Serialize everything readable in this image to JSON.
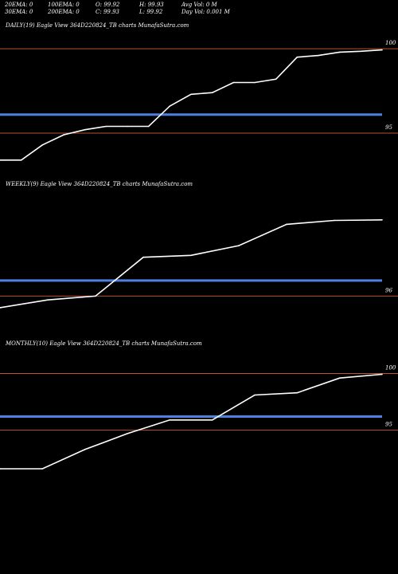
{
  "header": {
    "row1": [
      {
        "text": "20EMA: 0"
      },
      {
        "text": "100EMA: 0"
      },
      {
        "text": "O: 99.92"
      },
      {
        "text": "H: 99.93"
      },
      {
        "text": "Avg Vol: 0  M"
      }
    ],
    "row2": [
      {
        "text": "30EMA: 0"
      },
      {
        "text": "200EMA: 0"
      },
      {
        "text": "C: 99.93"
      },
      {
        "text": "L: 99.92"
      },
      {
        "text": "Day Vol: 0.001 M"
      }
    ]
  },
  "colors": {
    "price": "#ffffff",
    "ema": "#4f7fe0",
    "grid": "#b5562f",
    "background": "#000000"
  },
  "chart_data": [
    {
      "type": "line",
      "title": "DAILY(19) Eagle  View  364D220824_TB charts MunafaSutra.com",
      "yticks": [
        {
          "label": "100",
          "value": 100
        },
        {
          "label": "95",
          "value": 95
        }
      ],
      "ylim": [
        92.4,
        101.0
      ],
      "ema_value": 96.1,
      "values": [
        93.4,
        93.4,
        94.3,
        94.9,
        95.2,
        95.4,
        95.4,
        95.4,
        96.6,
        97.3,
        97.4,
        98.0,
        98.0,
        98.2,
        99.5,
        99.6,
        99.8,
        99.85,
        99.93
      ]
    },
    {
      "type": "line",
      "title": "WEEKLY(9) Eagle  View  364D220824_TB charts MunafaSutra.com",
      "yticks": [
        {
          "label": "96",
          "value": 96
        }
      ],
      "ylim": [
        94.0,
        101.4
      ],
      "ema_value": 96.8,
      "values": [
        95.4,
        95.8,
        96.0,
        98.0,
        98.1,
        98.6,
        99.7,
        99.9,
        99.93
      ]
    },
    {
      "type": "line",
      "title": "MONTHLY(10) Eagle  View  364D220824_TB charts MunafaSutra.com",
      "yticks": [
        {
          "label": "100",
          "value": 100
        },
        {
          "label": "95",
          "value": 95
        }
      ],
      "ylim": [
        89.0,
        102.0
      ],
      "ema_value": 96.2,
      "values": [
        91.6,
        91.6,
        93.3,
        94.7,
        95.9,
        95.9,
        98.1,
        98.3,
        99.6,
        99.93
      ]
    }
  ]
}
